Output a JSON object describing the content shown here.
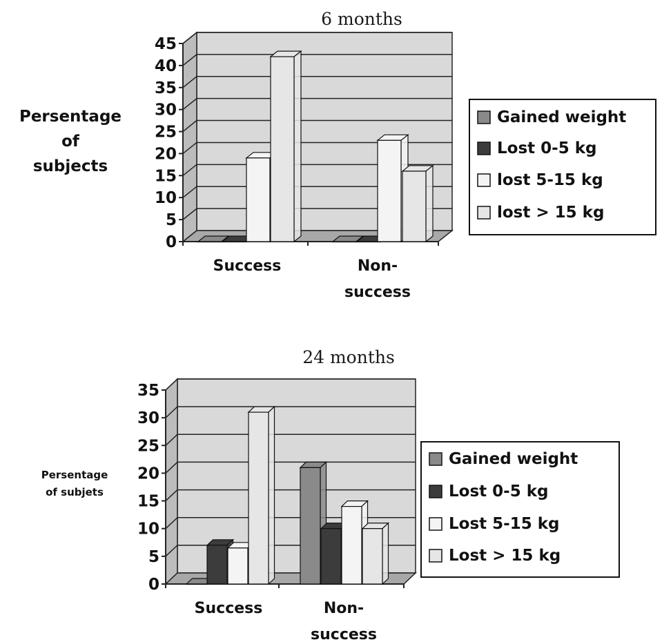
{
  "colors": {
    "wall": "#d9d9d9",
    "gained_weight": "#8a8a8a",
    "lost_0_5": "#3c3c3c",
    "lost_5_15": "#f4f4f4",
    "lost_gt_15": "#e6e6e6"
  },
  "chart_data": [
    {
      "type": "bar",
      "title": "6 months",
      "ylabel": [
        "Persentage",
        "of",
        "subjects"
      ],
      "categories": [
        [
          "Success"
        ],
        [
          "Non-",
          "success"
        ]
      ],
      "ylim": [
        0,
        45
      ],
      "yticks": [
        "0",
        "5",
        "10",
        "15",
        "20",
        "25",
        "30",
        "35",
        "40",
        "45"
      ],
      "series": [
        {
          "name": "Gained weight",
          "values": [
            0,
            0
          ]
        },
        {
          "name": "Lost 0-5 kg",
          "values": [
            0,
            0
          ]
        },
        {
          "name": "lost 5-15 kg",
          "values": [
            19,
            23
          ]
        },
        {
          "name": "lost > 15 kg",
          "values": [
            42,
            16
          ]
        }
      ],
      "grid": true,
      "legend": "right"
    },
    {
      "type": "bar",
      "title": "24 months",
      "ylabel": [
        "Persentage",
        "of subjets"
      ],
      "categories": [
        [
          "Success"
        ],
        [
          "Non-",
          "success"
        ]
      ],
      "ylim": [
        0,
        35
      ],
      "yticks": [
        "0",
        "5",
        "10",
        "15",
        "20",
        "25",
        "30",
        "35"
      ],
      "series": [
        {
          "name": "Gained weight",
          "values": [
            0,
            21
          ]
        },
        {
          "name": "Lost 0-5 kg",
          "values": [
            7,
            10
          ]
        },
        {
          "name": "Lost 5-15 kg",
          "values": [
            6.5,
            14
          ]
        },
        {
          "name": "Lost > 15 kg",
          "values": [
            31,
            10
          ]
        }
      ],
      "grid": true,
      "legend": "right"
    }
  ]
}
